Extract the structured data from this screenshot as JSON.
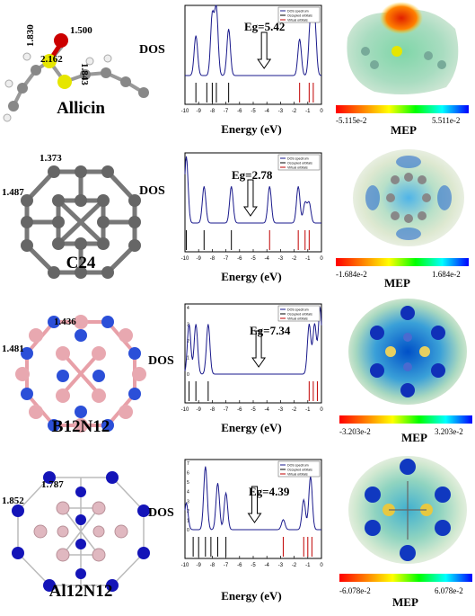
{
  "rows": [
    {
      "molecule": "Allicin",
      "bond_labels": [
        "1.830",
        "1.500",
        "2.162",
        "1.843"
      ],
      "dos_label": "DOS",
      "gap": "Eg=5.42",
      "energy_label": "Energy (eV)",
      "legend": [
        "DOS spectrum",
        "Occupied orbitals",
        "Virtual orbitals"
      ],
      "mep_min": "-5.115e-2",
      "mep_max": "5.511e-2",
      "mep_title": "MEP"
    },
    {
      "molecule": "C24",
      "bond_labels": [
        "1.373",
        "1.487"
      ],
      "dos_label": "DOS",
      "gap": "Eg=2.78",
      "energy_label": "Energy (eV)",
      "legend": [
        "DOS spectrum",
        "Occupied orbitals",
        "Virtual orbitals"
      ],
      "mep_min": "-1.684e-2",
      "mep_max": "1.684e-2",
      "mep_title": "MEP"
    },
    {
      "molecule": "B12N12",
      "bond_labels": [
        "1.436",
        "1.481"
      ],
      "dos_label": "DOS",
      "gap": "Eg=7.34",
      "energy_label": "Energy (eV)",
      "legend": [
        "DOS spectrum",
        "Occupied orbitals",
        "Virtual orbitals"
      ],
      "mep_min": "-3.203e-2",
      "mep_max": "3.203e-2",
      "mep_title": "MEP"
    },
    {
      "molecule": "Al12N12",
      "bond_labels": [
        "1.787",
        "1.852"
      ],
      "dos_label": "DOS",
      "gap": "Eg=4.39",
      "energy_label": "Energy (eV)",
      "legend": [
        "DOS spectrum",
        "Occupied orbitals",
        "Virtual orbitals"
      ],
      "mep_min": "-6.078e-2",
      "mep_max": "6.078e-2",
      "mep_title": "MEP"
    }
  ],
  "chart_data": [
    {
      "type": "line",
      "xlabel": "Energy (eV)",
      "ylabel": "DOS",
      "xlim": [
        -10,
        0
      ],
      "x_ticks": [
        "-10",
        "-9",
        "-8",
        "-7",
        "-6",
        "-5",
        "-4",
        "-3",
        "-2",
        "-1",
        "0"
      ],
      "gap_annotation": "Eg=5.42",
      "occupied_levels": [
        -9.2,
        -8.4,
        -8.0,
        -7.7,
        -6.8
      ],
      "virtual_levels": [
        -1.6,
        -0.9,
        -0.6
      ],
      "peaks": [
        [
          -9.2,
          0.6
        ],
        [
          -8.0,
          0.9
        ],
        [
          -7.7,
          1.0
        ],
        [
          -6.8,
          0.7
        ],
        [
          -1.6,
          0.55
        ],
        [
          -0.8,
          0.85
        ],
        [
          -0.5,
          0.85
        ]
      ]
    },
    {
      "type": "line",
      "xlabel": "Energy (eV)",
      "ylabel": "DOS",
      "xlim": [
        -10,
        0
      ],
      "x_ticks": [
        "-10",
        "-9",
        "-8",
        "-7",
        "-6",
        "-5",
        "-4",
        "-3",
        "-2",
        "-1",
        "0"
      ],
      "gap_annotation": "Eg=2.78",
      "occupied_levels": [
        -9.9,
        -8.6,
        -6.6
      ],
      "virtual_levels": [
        -3.8,
        -1.7,
        -1.2,
        -0.9
      ],
      "peaks": [
        [
          -9.9,
          1.0
        ],
        [
          -8.6,
          0.55
        ],
        [
          -6.6,
          0.55
        ],
        [
          -3.8,
          0.55
        ],
        [
          -1.7,
          0.55
        ],
        [
          -1.2,
          0.3
        ],
        [
          -0.9,
          0.3
        ]
      ]
    },
    {
      "type": "line",
      "xlabel": "Energy (eV)",
      "ylabel": "DOS",
      "xlim": [
        -10,
        0
      ],
      "x_ticks": [
        "-10",
        "-9",
        "-8",
        "-7",
        "-6",
        "-5",
        "-4",
        "-3",
        "-2",
        "-1",
        "0"
      ],
      "gap_annotation": "Eg=7.34",
      "y_ticks": [
        "0",
        "1",
        "2",
        "3",
        "4"
      ],
      "occupied_levels": [
        -9.7,
        -9.2,
        -8.3
      ],
      "virtual_levels": [
        -0.9,
        -0.6,
        -0.3
      ],
      "peaks": [
        [
          -9.7,
          0.75
        ],
        [
          -9.2,
          0.75
        ],
        [
          -8.3,
          0.75
        ],
        [
          -0.9,
          0.75
        ],
        [
          -0.5,
          0.75
        ],
        [
          -0.1,
          1.0
        ]
      ]
    },
    {
      "type": "line",
      "xlabel": "Energy (eV)",
      "ylabel": "DOS",
      "xlim": [
        -10,
        0
      ],
      "x_ticks": [
        "-10",
        "-9",
        "-8",
        "-7",
        "-6",
        "-5",
        "-4",
        "-3",
        "-2",
        "-1",
        "0"
      ],
      "gap_annotation": "Eg=4.39",
      "y_ticks": [
        "0",
        "1",
        "2",
        "3",
        "4",
        "5",
        "6",
        "7"
      ],
      "occupied_levels": [
        -9.4,
        -9.0,
        -8.5,
        -8.1,
        -7.6,
        -7.0
      ],
      "virtual_levels": [
        -2.8,
        -1.3,
        -1.0,
        -0.7
      ],
      "peaks": [
        [
          -9.9,
          0.4
        ],
        [
          -8.5,
          0.95
        ],
        [
          -7.6,
          0.7
        ],
        [
          -7.0,
          0.55
        ],
        [
          -2.8,
          0.15
        ],
        [
          -1.3,
          0.45
        ],
        [
          -0.8,
          0.8
        ]
      ]
    }
  ]
}
